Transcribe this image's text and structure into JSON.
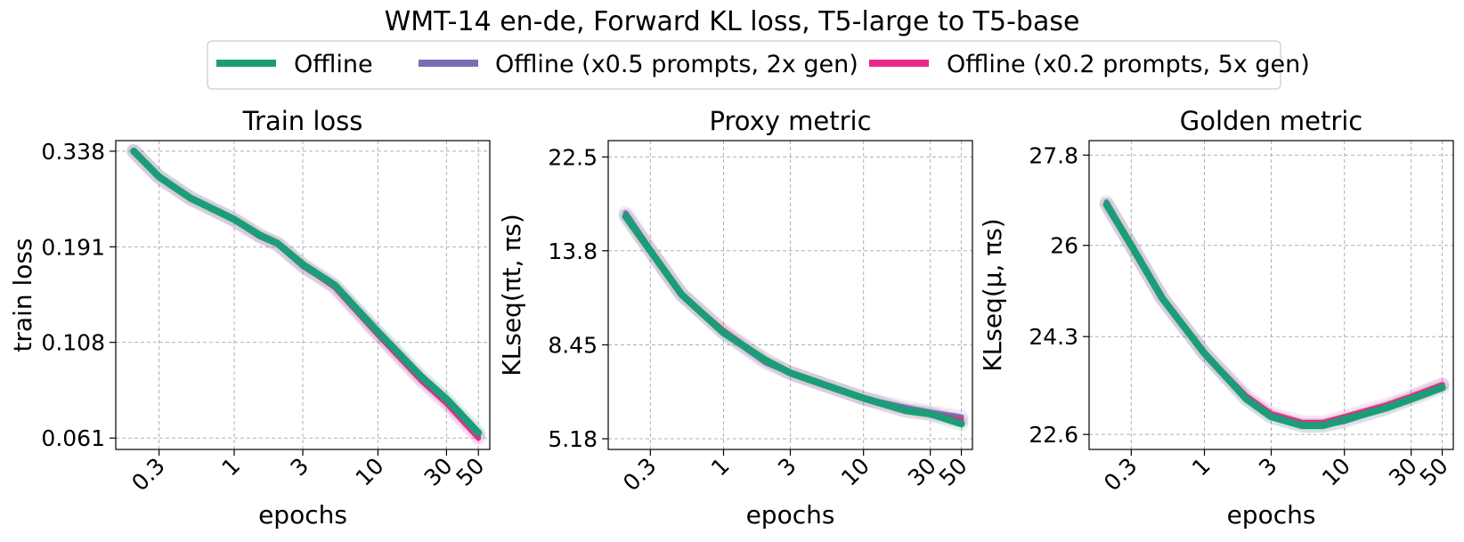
{
  "figure": {
    "title": "WMT-14 en-de, Forward KL loss, T5-large to T5-base"
  },
  "colors": {
    "offline": "#1b9e77",
    "half_prompts": "#7570b3",
    "fifth_prompts": "#e7298a"
  },
  "chart_data": [
    {
      "type": "line",
      "title": "Train loss",
      "xlabel": "epochs",
      "ylabel": "train loss",
      "x_scale": "log",
      "y_scale": "log",
      "xlim": [
        0.15,
        60
      ],
      "ylim": [
        0.057,
        0.36
      ],
      "x_ticks": [
        0.3,
        1,
        3,
        10,
        30,
        50
      ],
      "x_tick_labels": [
        "0.3",
        "1",
        "3",
        "10",
        "30",
        "50"
      ],
      "y_ticks": [
        0.061,
        0.108,
        0.191,
        0.338
      ],
      "y_tick_labels": [
        "0.061",
        "0.108",
        "0.191",
        "0.338"
      ],
      "grid": true,
      "series": [
        {
          "name": "Offline",
          "color_key": "offline",
          "x": [
            0.2,
            0.3,
            0.5,
            1,
            1.5,
            2,
            3,
            5,
            10,
            20,
            30,
            50
          ],
          "y": [
            0.338,
            0.29,
            0.255,
            0.225,
            0.205,
            0.195,
            0.172,
            0.152,
            0.115,
            0.088,
            0.077,
            0.063
          ]
        },
        {
          "name": "Offline (x0.5 prompts, 2x gen)",
          "color_key": "half_prompts",
          "x": [
            0.2,
            0.3,
            0.5,
            1,
            1.5,
            2,
            3,
            5,
            10,
            20,
            30,
            50
          ],
          "y": [
            0.338,
            0.29,
            0.256,
            0.224,
            0.203,
            0.194,
            0.17,
            0.151,
            0.114,
            0.087,
            0.076,
            0.062
          ]
        },
        {
          "name": "Offline (x0.2 prompts, 5x gen)",
          "color_key": "fifth_prompts",
          "x": [
            0.2,
            0.3,
            0.5,
            1,
            1.5,
            2,
            3,
            5,
            10,
            20,
            30,
            50
          ],
          "y": [
            0.337,
            0.289,
            0.254,
            0.224,
            0.204,
            0.194,
            0.171,
            0.15,
            0.113,
            0.086,
            0.075,
            0.061
          ]
        }
      ]
    },
    {
      "type": "line",
      "title": "Proxy metric",
      "xlabel": "epochs",
      "ylabel": "KLseq(πt, πs)",
      "x_scale": "log",
      "y_scale": "log",
      "xlim": [
        0.15,
        60
      ],
      "ylim": [
        4.9,
        24.5
      ],
      "x_ticks": [
        0.3,
        1,
        3,
        10,
        30,
        50
      ],
      "x_tick_labels": [
        "0.3",
        "1",
        "3",
        "10",
        "30",
        "50"
      ],
      "y_ticks": [
        5.18,
        8.45,
        13.8,
        22.5
      ],
      "y_tick_labels": [
        "5.18",
        "8.45",
        "13.8",
        "22.5"
      ],
      "grid": true,
      "series": [
        {
          "name": "Offline",
          "color_key": "offline",
          "x": [
            0.2,
            0.3,
            0.5,
            1,
            2,
            3,
            5,
            10,
            20,
            30,
            50
          ],
          "y": [
            16.5,
            13.8,
            11.0,
            9.0,
            7.8,
            7.3,
            6.9,
            6.4,
            6.0,
            5.9,
            5.6
          ]
        },
        {
          "name": "Offline (x0.5 prompts, 2x gen)",
          "color_key": "half_prompts",
          "x": [
            0.2,
            0.3,
            0.5,
            1,
            2,
            3,
            5,
            10,
            20,
            30,
            50
          ],
          "y": [
            16.8,
            13.9,
            11.0,
            9.0,
            7.7,
            7.3,
            6.9,
            6.4,
            6.1,
            5.95,
            5.8
          ]
        },
        {
          "name": "Offline (x0.2 prompts, 5x gen)",
          "color_key": "fifth_prompts",
          "x": [
            0.2,
            0.3,
            0.5,
            1,
            2,
            3,
            5,
            10,
            20,
            30,
            50
          ],
          "y": [
            16.6,
            13.8,
            11.0,
            9.1,
            7.8,
            7.3,
            6.9,
            6.4,
            6.0,
            5.9,
            5.7
          ]
        }
      ]
    },
    {
      "type": "line",
      "title": "Golden metric",
      "xlabel": "epochs",
      "ylabel": "KLseq(μ, πs)",
      "x_scale": "log",
      "y_scale": "log",
      "xlim": [
        0.15,
        60
      ],
      "ylim": [
        22.35,
        28.1
      ],
      "x_ticks": [
        0.3,
        1,
        3,
        10,
        30,
        50
      ],
      "x_tick_labels": [
        "0.3",
        "1",
        "3",
        "10",
        "30",
        "50"
      ],
      "y_ticks": [
        22.6,
        24.3,
        26,
        27.8
      ],
      "y_tick_labels": [
        "22.6",
        "24.3",
        "26",
        "27.8"
      ],
      "grid": true,
      "series": [
        {
          "name": "Offline",
          "color_key": "offline",
          "x": [
            0.2,
            0.3,
            0.5,
            1,
            2,
            3,
            5,
            7,
            10,
            20,
            30,
            50
          ],
          "y": [
            26.8,
            26.0,
            25.0,
            24.0,
            23.2,
            22.9,
            22.75,
            22.75,
            22.85,
            23.05,
            23.2,
            23.4
          ]
        },
        {
          "name": "Offline (x0.5 prompts, 2x gen)",
          "color_key": "half_prompts",
          "x": [
            0.2,
            0.3,
            0.5,
            1,
            2,
            3,
            5,
            7,
            10,
            20,
            30,
            50
          ],
          "y": [
            26.85,
            26.0,
            25.0,
            24.0,
            23.2,
            22.9,
            22.75,
            22.75,
            22.82,
            23.05,
            23.22,
            23.45
          ]
        },
        {
          "name": "Offline (x0.2 prompts, 5x gen)",
          "color_key": "fifth_prompts",
          "x": [
            0.2,
            0.3,
            0.5,
            1,
            2,
            3,
            5,
            7,
            10,
            20,
            30,
            50
          ],
          "y": [
            26.8,
            26.0,
            25.0,
            24.0,
            23.25,
            22.95,
            22.8,
            22.8,
            22.9,
            23.1,
            23.25,
            23.45
          ]
        }
      ]
    }
  ],
  "legend": {
    "placement": "top-center",
    "entries": [
      "Offline",
      "Offline (x0.5 prompts, 2x gen)",
      "Offline (x0.2 prompts, 5x gen)"
    ]
  }
}
